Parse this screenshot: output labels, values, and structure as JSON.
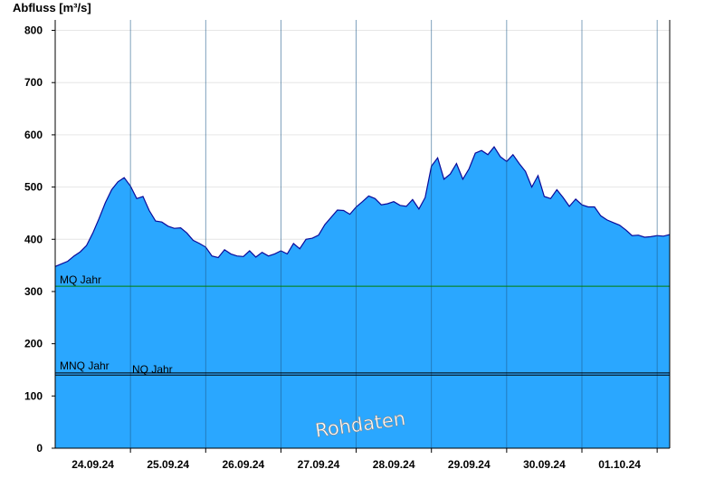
{
  "chart_data": {
    "type": "area",
    "ylabel": "Abfluss [m³/s]",
    "ylim": [
      0,
      820
    ],
    "yticks": [
      0,
      100,
      200,
      300,
      400,
      500,
      600,
      700,
      800
    ],
    "x_day_labels": [
      "24.09.24",
      "25.09.24",
      "26.09.24",
      "27.09.24",
      "28.09.24",
      "29.09.24",
      "30.09.24",
      "01.10.24"
    ],
    "x_start": "23.09.24 18:00",
    "x_end": "01.10.24 22:00",
    "grid": true,
    "colors": {
      "area": "#2aa7ff",
      "line": "#0a0a9a",
      "mq": "#008000",
      "nq": "#000000"
    },
    "series": [
      {
        "name": "",
        "points": [
          [
            "23.09.24 18:00",
            348
          ],
          [
            "23.09.24 20:00",
            353
          ],
          [
            "23.09.24 22:00",
            358
          ],
          [
            "24.09.24 00:00",
            368
          ],
          [
            "24.09.24 02:00",
            376
          ],
          [
            "24.09.24 04:00",
            388
          ],
          [
            "24.09.24 06:00",
            412
          ],
          [
            "24.09.24 08:00",
            440
          ],
          [
            "24.09.24 10:00",
            470
          ],
          [
            "24.09.24 12:00",
            495
          ],
          [
            "24.09.24 14:00",
            510
          ],
          [
            "24.09.24 16:00",
            518
          ],
          [
            "24.09.24 18:00",
            502
          ],
          [
            "24.09.24 20:00",
            478
          ],
          [
            "24.09.24 22:00",
            482
          ],
          [
            "25.09.24 00:00",
            455
          ],
          [
            "25.09.24 02:00",
            435
          ],
          [
            "25.09.24 04:00",
            433
          ],
          [
            "25.09.24 06:00",
            425
          ],
          [
            "25.09.24 08:00",
            421
          ],
          [
            "25.09.24 10:00",
            422
          ],
          [
            "25.09.24 12:00",
            412
          ],
          [
            "25.09.24 14:00",
            398
          ],
          [
            "25.09.24 16:00",
            392
          ],
          [
            "25.09.24 18:00",
            385
          ],
          [
            "25.09.24 20:00",
            368
          ],
          [
            "25.09.24 22:00",
            365
          ],
          [
            "26.09.24 00:00",
            380
          ],
          [
            "26.09.24 02:00",
            372
          ],
          [
            "26.09.24 04:00",
            368
          ],
          [
            "26.09.24 06:00",
            367
          ],
          [
            "26.09.24 08:00",
            378
          ],
          [
            "26.09.24 10:00",
            366
          ],
          [
            "26.09.24 12:00",
            375
          ],
          [
            "26.09.24 14:00",
            368
          ],
          [
            "26.09.24 16:00",
            372
          ],
          [
            "26.09.24 18:00",
            378
          ],
          [
            "26.09.24 20:00",
            372
          ],
          [
            "26.09.24 22:00",
            392
          ],
          [
            "27.09.24 00:00",
            382
          ],
          [
            "27.09.24 02:00",
            400
          ],
          [
            "27.09.24 04:00",
            402
          ],
          [
            "27.09.24 06:00",
            408
          ],
          [
            "27.09.24 08:00",
            428
          ],
          [
            "27.09.24 10:00",
            442
          ],
          [
            "27.09.24 12:00",
            456
          ],
          [
            "27.09.24 14:00",
            455
          ],
          [
            "27.09.24 16:00",
            448
          ],
          [
            "27.09.24 18:00",
            462
          ],
          [
            "27.09.24 20:00",
            472
          ],
          [
            "27.09.24 22:00",
            483
          ],
          [
            "28.09.24 00:00",
            478
          ],
          [
            "28.09.24 02:00",
            466
          ],
          [
            "28.09.24 04:00",
            468
          ],
          [
            "28.09.24 06:00",
            472
          ],
          [
            "28.09.24 08:00",
            465
          ],
          [
            "28.09.24 10:00",
            463
          ],
          [
            "28.09.24 12:00",
            476
          ],
          [
            "28.09.24 14:00",
            458
          ],
          [
            "28.09.24 16:00",
            480
          ],
          [
            "28.09.24 18:00",
            540
          ],
          [
            "28.09.24 20:00",
            556
          ],
          [
            "28.09.24 22:00",
            515
          ],
          [
            "29.09.24 00:00",
            525
          ],
          [
            "29.09.24 02:00",
            545
          ],
          [
            "29.09.24 04:00",
            515
          ],
          [
            "29.09.24 06:00",
            535
          ],
          [
            "29.09.24 08:00",
            565
          ],
          [
            "29.09.24 10:00",
            570
          ],
          [
            "29.09.24 12:00",
            562
          ],
          [
            "29.09.24 14:00",
            577
          ],
          [
            "29.09.24 16:00",
            558
          ],
          [
            "29.09.24 18:00",
            549
          ],
          [
            "29.09.24 20:00",
            562
          ],
          [
            "29.09.24 22:00",
            545
          ],
          [
            "30.09.24 00:00",
            530
          ],
          [
            "30.09.24 02:00",
            500
          ],
          [
            "30.09.24 04:00",
            522
          ],
          [
            "30.09.24 06:00",
            482
          ],
          [
            "30.09.24 08:00",
            478
          ],
          [
            "30.09.24 10:00",
            495
          ],
          [
            "30.09.24 12:00",
            480
          ],
          [
            "30.09.24 14:00",
            463
          ],
          [
            "30.09.24 16:00",
            477
          ],
          [
            "30.09.24 18:00",
            466
          ],
          [
            "30.09.24 20:00",
            462
          ],
          [
            "30.09.24 22:00",
            462
          ],
          [
            "01.10.24 00:00",
            445
          ],
          [
            "01.10.24 02:00",
            437
          ],
          [
            "01.10.24 04:00",
            432
          ],
          [
            "01.10.24 06:00",
            427
          ],
          [
            "01.10.24 08:00",
            418
          ],
          [
            "01.10.24 10:00",
            407
          ],
          [
            "01.10.24 12:00",
            408
          ],
          [
            "01.10.24 14:00",
            404
          ],
          [
            "01.10.24 16:00",
            405
          ],
          [
            "01.10.24 18:00",
            407
          ],
          [
            "01.10.24 20:00",
            406
          ],
          [
            "01.10.24 22:00",
            409
          ]
        ]
      }
    ],
    "reference_lines": [
      {
        "label": "MQ Jahr",
        "value": 310,
        "color": "#008000"
      },
      {
        "label": "MNQ Jahr",
        "value": 144,
        "color": "#000000"
      },
      {
        "label": "NQ Jahr",
        "value": 140,
        "color": "#000000"
      }
    ],
    "watermark": "Rohdaten"
  }
}
